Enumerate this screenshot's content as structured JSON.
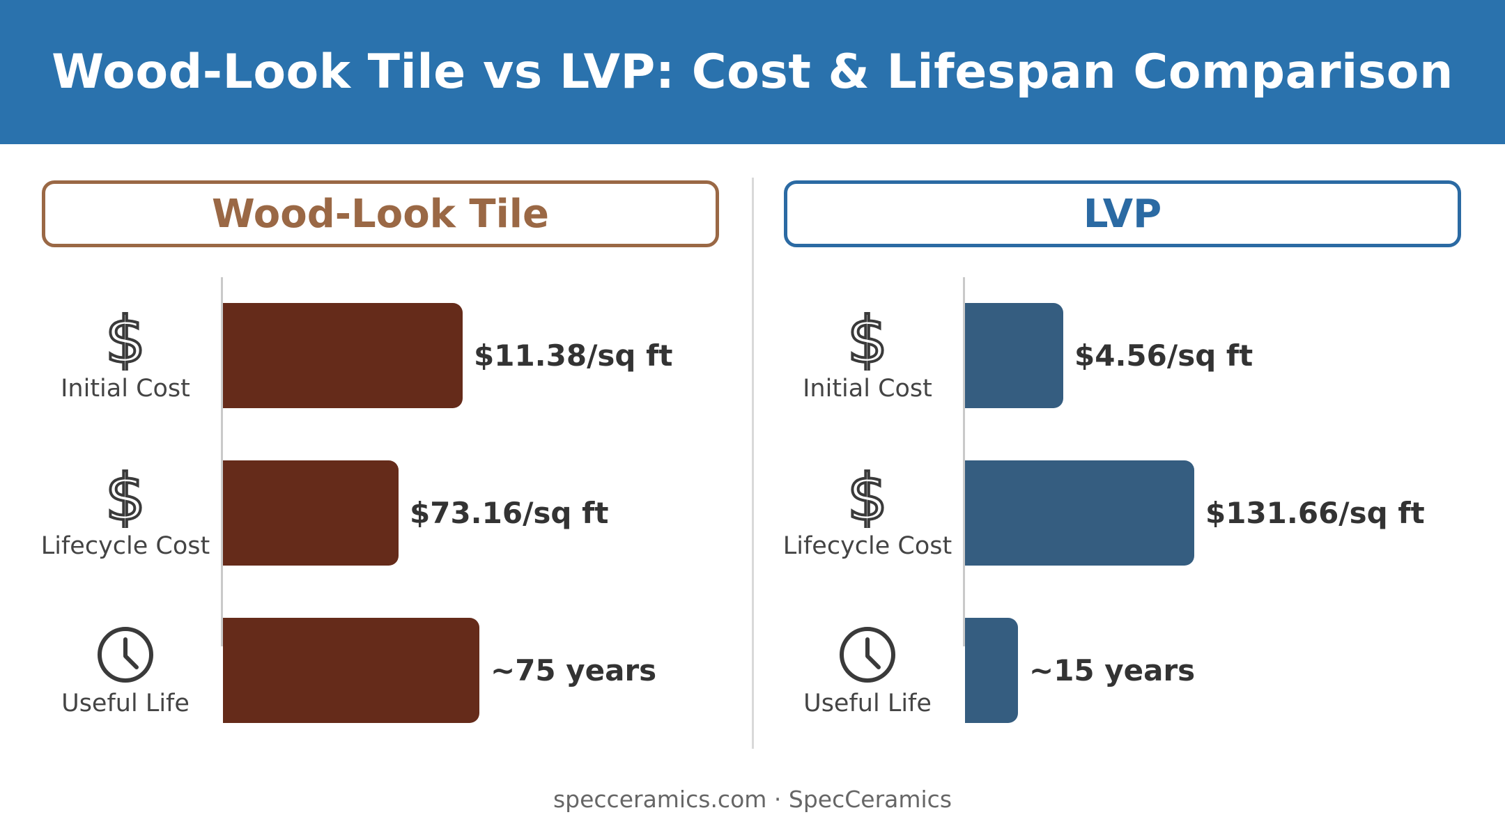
{
  "header": {
    "title": "Wood-Look Tile vs LVP: Cost & Lifespan Comparison"
  },
  "chart_data": {
    "type": "bar",
    "orientation": "horizontal",
    "categories": [
      "Initial Cost",
      "Lifecycle Cost",
      "Useful Life"
    ],
    "category_icons": [
      "dollar-icon",
      "dollar-icon",
      "clock-icon"
    ],
    "panels": [
      {
        "title": "Wood-Look Tile",
        "color": "#652b1a",
        "border_color": "#9a6845",
        "values": [
          11.38,
          73.16,
          75
        ],
        "labels": [
          "$11.38/sq ft",
          "$73.16/sq ft",
          "~75 years"
        ],
        "bar_fraction": [
          0.465,
          0.34,
          0.497
        ]
      },
      {
        "title": "LVP",
        "color": "#355d80",
        "border_color": "#2b6aa3",
        "values": [
          4.56,
          131.66,
          15
        ],
        "labels": [
          "$4.56/sq ft",
          "$131.66/sq ft",
          "~15 years"
        ],
        "bar_fraction": [
          0.19,
          0.445,
          0.103
        ]
      }
    ]
  },
  "footer": {
    "text": "specceramics.com · SpecCeramics"
  }
}
